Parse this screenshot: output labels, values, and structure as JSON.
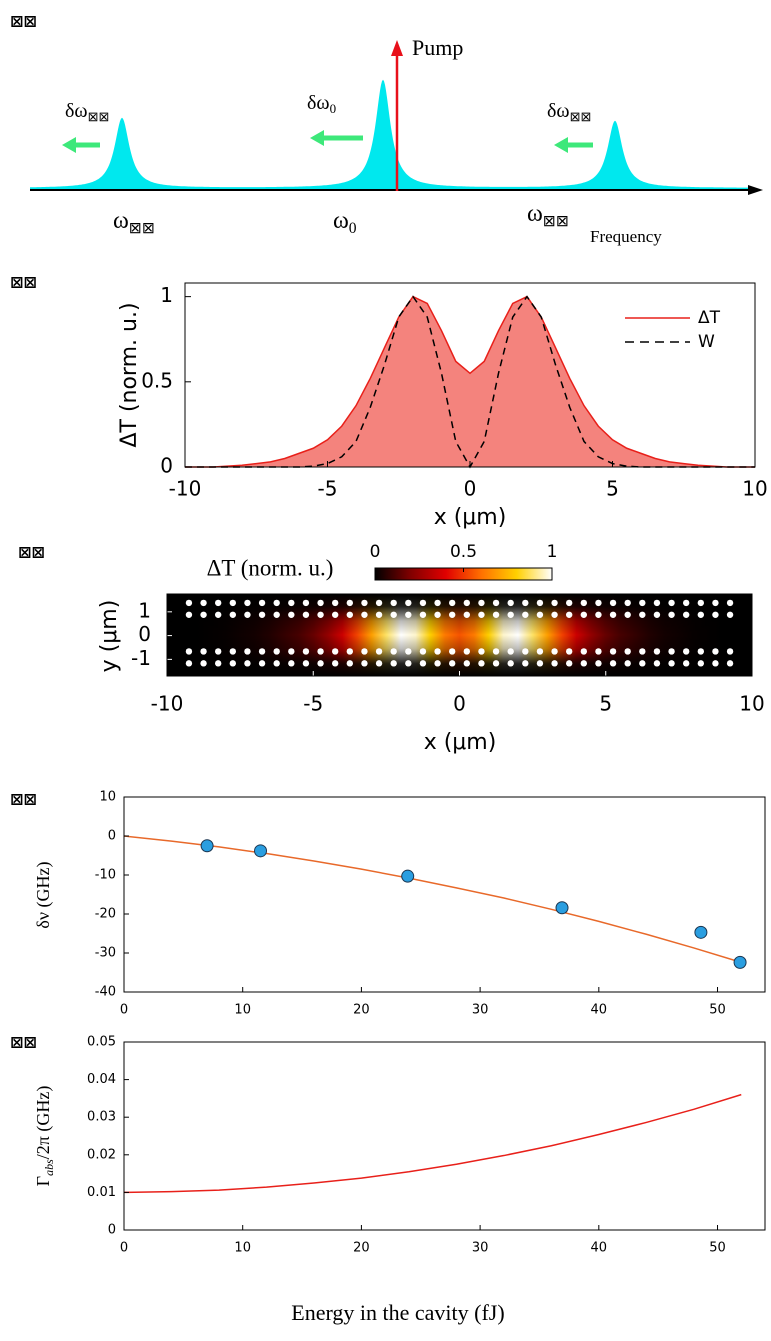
{
  "panel_labels": [
    "⊠⊠",
    "⊠⊠",
    "⊠⊠",
    "⊠⊠",
    "⊠⊠"
  ],
  "schematic": {
    "pump_label": "Pump",
    "axis_label": "Frequency",
    "shift_labels": [
      {
        "symbol": "δω",
        "sub": "⊠⊠"
      },
      {
        "symbol": "δω",
        "sub": "0"
      },
      {
        "symbol": "δω",
        "sub": "⊠⊠"
      }
    ],
    "mode_labels": [
      {
        "symbol": "ω",
        "sub": "⊠⊠"
      },
      {
        "symbol": "ω",
        "sub": "0"
      },
      {
        "symbol": "ω",
        "sub": "⊠⊠"
      }
    ],
    "peak_color": "#00e8ee",
    "shift_arrow_color": "#3de87a",
    "pump_color": "#e8101a"
  },
  "chart_data": [
    {
      "type": "line",
      "x_label": "x (μm)",
      "y_label": "ΔT (norm. u.)",
      "x": [
        -10,
        -9.5,
        -9,
        -8.5,
        -8,
        -7.5,
        -7,
        -6.5,
        -6,
        -5.5,
        -5,
        -4.5,
        -4,
        -3.5,
        -3,
        -2.5,
        -2,
        -1.5,
        -1,
        -0.5,
        0,
        0.5,
        1,
        1.5,
        2,
        2.5,
        3,
        3.5,
        4,
        4.5,
        5,
        5.5,
        6,
        6.5,
        7,
        7.5,
        8,
        8.5,
        9,
        9.5,
        10
      ],
      "series": [
        {
          "name": "ΔT",
          "color": "#e8201a",
          "fill": "#f4837d",
          "values": [
            0,
            0,
            0,
            0.005,
            0.01,
            0.02,
            0.03,
            0.05,
            0.08,
            0.11,
            0.16,
            0.24,
            0.36,
            0.52,
            0.7,
            0.88,
            1,
            0.96,
            0.8,
            0.62,
            0.55,
            0.62,
            0.8,
            0.96,
            1,
            0.88,
            0.7,
            0.52,
            0.36,
            0.24,
            0.16,
            0.11,
            0.08,
            0.05,
            0.03,
            0.02,
            0.01,
            0.005,
            0,
            0,
            0
          ]
        },
        {
          "name": "W",
          "color": "#000000",
          "dash": true,
          "values": [
            0,
            0,
            0,
            0,
            0,
            0,
            0,
            0,
            0,
            0.005,
            0.02,
            0.06,
            0.15,
            0.35,
            0.6,
            0.88,
            1,
            0.88,
            0.55,
            0.15,
            0,
            0.15,
            0.55,
            0.88,
            1,
            0.88,
            0.6,
            0.35,
            0.15,
            0.06,
            0.02,
            0.005,
            0,
            0,
            0,
            0,
            0,
            0,
            0,
            0,
            0
          ]
        }
      ],
      "xlim": [
        -10,
        10
      ],
      "ylim": [
        0,
        1.08
      ],
      "xticks": [
        -10,
        -5,
        0,
        5,
        10
      ],
      "yticks": [
        0,
        0.5,
        1
      ],
      "legend": "upper right"
    },
    {
      "type": "heatmap",
      "x_label": "x (μm)",
      "y_label": "y (μm)",
      "colorbar_label": "ΔT (norm. u.)",
      "colorbar_ticks": [
        0,
        0.5,
        1
      ],
      "colormap": [
        "#000000",
        "#800000",
        "#e00000",
        "#ff7000",
        "#ffd000",
        "#ffffff"
      ],
      "xlim": [
        -10,
        10
      ],
      "ylim": [
        -1.7,
        1.75
      ],
      "xticks": [
        -10,
        -5,
        0,
        5,
        10
      ],
      "yticks": [
        -1,
        0,
        1
      ]
    },
    {
      "type": "scatter",
      "y_label": "δν (GHz)",
      "series": [
        {
          "mode": "line",
          "color": "#e8692a",
          "x": [
            0,
            4,
            8,
            12,
            16,
            20,
            24,
            28,
            32,
            36,
            40,
            44,
            48,
            52
          ],
          "values": [
            0,
            -1.3,
            -2.8,
            -4.5,
            -6.4,
            -8.5,
            -10.8,
            -13.3,
            -15.9,
            -18.8,
            -21.9,
            -25.2,
            -28.7,
            -32.4
          ]
        },
        {
          "mode": "markers",
          "color": "#2a9ee0",
          "x": [
            7,
            11.5,
            23.9,
            36.9,
            48.6,
            51.9
          ],
          "values": [
            -2.5,
            -3.8,
            -10.3,
            -18.4,
            -24.7,
            -32.4
          ]
        }
      ],
      "xlim": [
        0,
        54
      ],
      "ylim": [
        -40,
        10
      ],
      "xticks": [
        0,
        10,
        20,
        30,
        40,
        50
      ],
      "yticks": [
        -40,
        -30,
        -20,
        -10,
        0,
        10
      ]
    },
    {
      "type": "line",
      "x_label": "Energy in the cavity (fJ)",
      "y_label": [
        "Γ",
        "abs",
        "/2π (GHz)"
      ],
      "x": [
        0,
        4,
        8,
        12,
        16,
        20,
        24,
        28,
        32,
        36,
        40,
        44,
        48,
        52
      ],
      "series": [
        {
          "color": "#e8201a",
          "values": [
            0.01,
            0.0102,
            0.0106,
            0.0114,
            0.0125,
            0.0138,
            0.0155,
            0.0175,
            0.0198,
            0.0224,
            0.0254,
            0.0286,
            0.0321,
            0.036
          ]
        }
      ],
      "xlim": [
        0,
        54
      ],
      "ylim": [
        0,
        0.05
      ],
      "xticks": [
        0,
        10,
        20,
        30,
        40,
        50
      ],
      "yticks": [
        0,
        0.01,
        0.02,
        0.03,
        0.04,
        0.05
      ]
    }
  ]
}
